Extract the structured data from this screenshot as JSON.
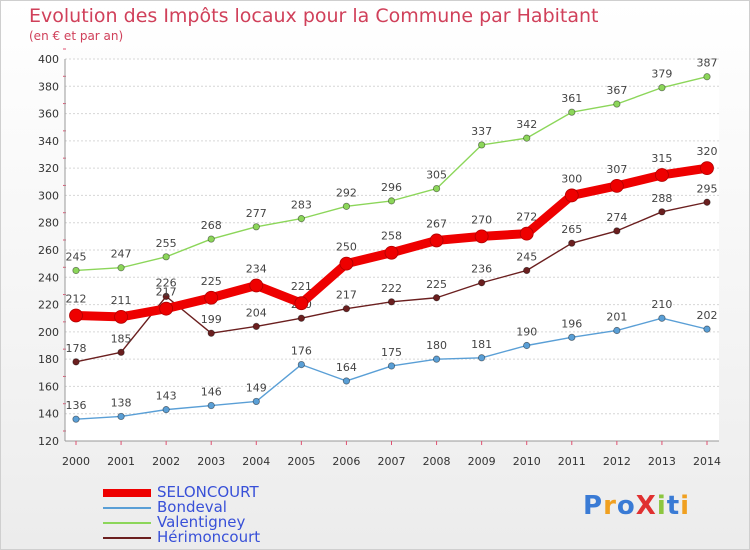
{
  "title": "Evolution des Impôts locaux pour la Commune par Habitant",
  "subtitle": "(en € et par an)",
  "logo_text": "ProXiti",
  "chart_data": {
    "type": "line",
    "title": "Evolution des Impôts locaux pour la Commune par Habitant",
    "subtitle": "(en € et par an)",
    "categories": [
      "2000",
      "2001",
      "2002",
      "2003",
      "2004",
      "2005",
      "2006",
      "2007",
      "2008",
      "2009",
      "2010",
      "2011",
      "2012",
      "2013",
      "2014"
    ],
    "y_ticks": [
      120,
      140,
      160,
      180,
      200,
      220,
      240,
      260,
      280,
      300,
      320,
      340,
      360,
      380,
      400
    ],
    "ylim": [
      120,
      400
    ],
    "grid": "horizontal",
    "legend_position": "bottom-left",
    "series": [
      {
        "name": "SELONCOURT",
        "color": "#ee0000",
        "values": [
          212,
          211,
          217,
          225,
          234,
          221,
          250,
          258,
          267,
          270,
          272,
          300,
          307,
          315,
          320
        ]
      },
      {
        "name": "Bondeval",
        "color": "#5a9fd6",
        "values": [
          136,
          138,
          143,
          146,
          149,
          176,
          164,
          175,
          180,
          181,
          190,
          196,
          201,
          210,
          202
        ]
      },
      {
        "name": "Valentigney",
        "color": "#8cd65a",
        "values": [
          245,
          247,
          255,
          268,
          277,
          283,
          292,
          296,
          305,
          337,
          342,
          361,
          367,
          379,
          387
        ]
      },
      {
        "name": "Hérimoncourt",
        "color": "#6b1f1f",
        "values": [
          178,
          185,
          226,
          199,
          204,
          210,
          217,
          222,
          225,
          236,
          245,
          265,
          274,
          288,
          295
        ]
      }
    ]
  }
}
